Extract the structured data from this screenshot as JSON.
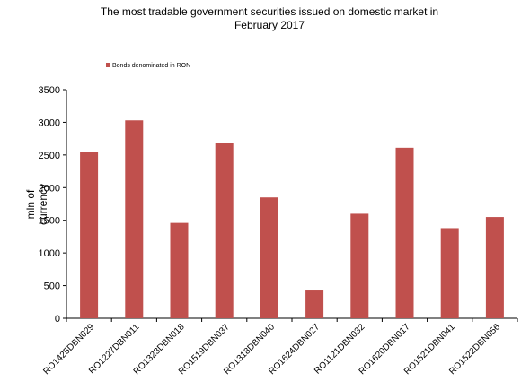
{
  "chart_data": {
    "type": "bar",
    "title_line1": "The most  tradable government securities issued on domestic market in",
    "title_line2": "February 2017",
    "ylabel": "mln of currency",
    "xlabel": "",
    "legend_position": "top-left",
    "ylim": [
      0,
      3500
    ],
    "yticks": [
      0,
      500,
      1000,
      1500,
      2000,
      2500,
      3000,
      3500
    ],
    "grid": false,
    "categories": [
      "RO1425DBN029",
      "RO1227DBN011",
      "RO1323DBN018",
      "RO1519DBN037",
      "RO1318DBN040",
      "RO1624DBN027",
      "RO1121DBN032",
      "RO1620DBN017",
      "RO1521DBN041",
      "RO1522DBN056"
    ],
    "series": [
      {
        "name": "Bonds denominated in RON",
        "color": "#c0504d",
        "values": [
          2550,
          3030,
          1460,
          2680,
          1850,
          425,
          1600,
          2610,
          1380,
          1550
        ]
      }
    ]
  }
}
